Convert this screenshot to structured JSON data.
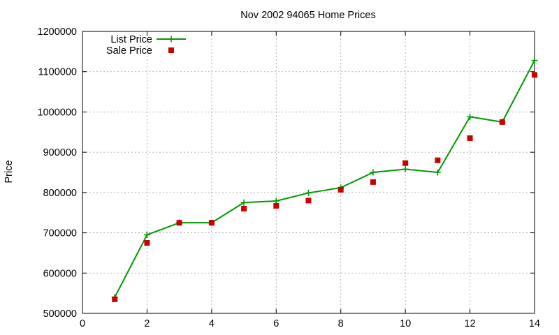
{
  "chart_data": {
    "type": "line",
    "title": "Nov 2002 94065 Home Prices",
    "xlabel": "",
    "ylabel": "Price",
    "xlim": [
      0,
      14
    ],
    "ylim": [
      500000,
      1200000
    ],
    "xticks": [
      0,
      2,
      4,
      6,
      8,
      10,
      12,
      14
    ],
    "yticks": [
      500000,
      600000,
      700000,
      800000,
      900000,
      1000000,
      1100000,
      1200000
    ],
    "grid": true,
    "legend_position": "top-left",
    "series": [
      {
        "name": "List Price",
        "style": "line-with-plus-markers",
        "color": "#009900",
        "x": [
          1,
          2,
          3,
          4,
          5,
          6,
          7,
          8,
          9,
          10,
          11,
          12,
          13,
          14
        ],
        "y": [
          540000,
          695000,
          725000,
          725000,
          775000,
          779000,
          799000,
          812000,
          850000,
          858000,
          850000,
          988000,
          975000,
          1128000
        ]
      },
      {
        "name": "Sale Price",
        "style": "square-points",
        "color": "#cc0000",
        "x": [
          1,
          2,
          3,
          4,
          5,
          6,
          7,
          8,
          9,
          10,
          11,
          12,
          13,
          14
        ],
        "y": [
          535000,
          675000,
          725000,
          725000,
          760000,
          767000,
          780000,
          807000,
          826000,
          873000,
          880000,
          935000,
          975000,
          1092000
        ]
      }
    ]
  }
}
